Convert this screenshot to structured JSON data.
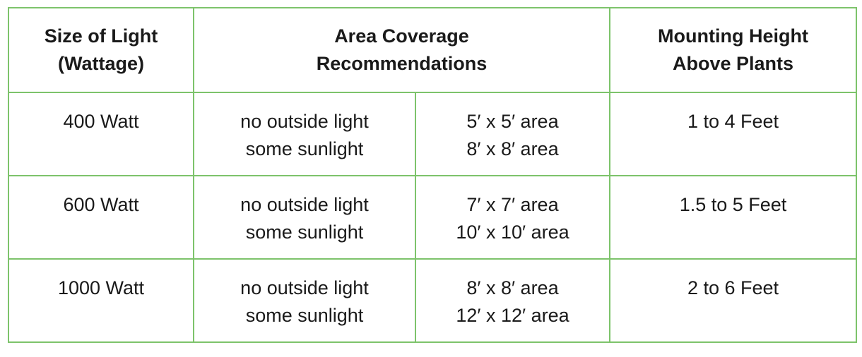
{
  "headers": {
    "size_line1": "Size of Light",
    "size_line2": "(Wattage)",
    "area_line1": "Area Coverage",
    "area_line2": "Recommendations",
    "height_line1": "Mounting Height",
    "height_line2": "Above Plants"
  },
  "rows": [
    {
      "size": "400 Watt",
      "cond1": "no outside light",
      "cond2": "some sunlight",
      "area1": "5′ x 5′ area",
      "area2": "8′ x 8′ area",
      "height": "1 to 4 Feet"
    },
    {
      "size": "600 Watt",
      "cond1": "no outside light",
      "cond2": "some sunlight",
      "area1": "7′ x 7′ area",
      "area2": "10′ x 10′ area",
      "height": "1.5 to 5 Feet"
    },
    {
      "size": "1000 Watt",
      "cond1": "no outside light",
      "cond2": "some sunlight",
      "area1": "8′ x 8′ area",
      "area2": "12′ x 12′ area",
      "height": "2 to 6 Feet"
    }
  ],
  "colors": {
    "border": "#7dc36b",
    "text": "#1a1a1a"
  }
}
